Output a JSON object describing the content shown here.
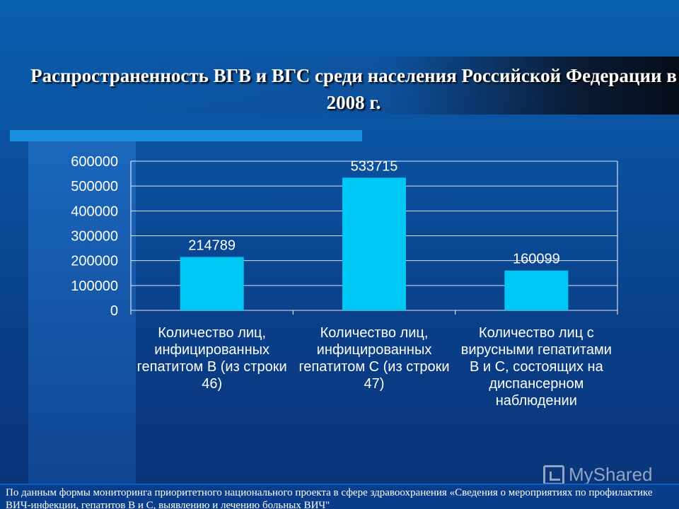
{
  "slide": {
    "title": "Распространенность ВГВ и ВГС среди населения Российской Федерации в 2008 г.",
    "footnote": "По данным формы мониторинга приоритетного национального проекта в сфере здравоохранения «Сведения о мероприятиях по профилактике ВИЧ-инфекции, гепатитов В и С, выявлению и лечению больных ВИЧ\"",
    "watermark": "MyShared"
  },
  "colors": {
    "bar": "#00c8f5",
    "gridline": "#ffffff",
    "text": "#ffffff"
  },
  "chart_data": {
    "type": "bar",
    "categories": [
      "Количество лиц, инфицированных гепатитом В (из строки 46)",
      "Количество лиц, инфицированных гепатитом С (из строки 47)",
      "Количество лиц с вирусными гепатитами В и С, состоящих на диспансерном наблюдении"
    ],
    "values": [
      214789,
      533715,
      160099
    ],
    "data_labels": [
      "214789",
      "533715",
      "160099"
    ],
    "yticks": [
      0,
      100000,
      200000,
      300000,
      400000,
      500000,
      600000
    ],
    "ylim": [
      0,
      600000
    ],
    "grid": true,
    "legend": "none",
    "title": "",
    "xlabel": "",
    "ylabel": ""
  }
}
